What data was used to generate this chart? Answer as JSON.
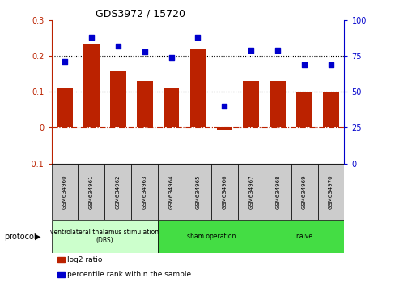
{
  "title": "GDS3972 / 15720",
  "samples": [
    "GSM634960",
    "GSM634961",
    "GSM634962",
    "GSM634963",
    "GSM634964",
    "GSM634965",
    "GSM634966",
    "GSM634967",
    "GSM634968",
    "GSM634969",
    "GSM634970"
  ],
  "log2_ratio": [
    0.11,
    0.235,
    0.16,
    0.13,
    0.11,
    0.22,
    -0.005,
    0.13,
    0.13,
    0.1,
    0.1
  ],
  "percentile_rank": [
    71,
    88,
    82,
    78,
    74,
    88,
    40,
    79,
    79,
    69,
    69
  ],
  "ylim_left": [
    -0.1,
    0.3
  ],
  "ylim_right": [
    0,
    100
  ],
  "yticks_left": [
    -0.1,
    0.0,
    0.1,
    0.2,
    0.3
  ],
  "yticks_right": [
    0,
    25,
    50,
    75,
    100
  ],
  "bar_color": "#bb2200",
  "dot_color": "#0000cc",
  "hline_color": "#bb2200",
  "dotted_lines": [
    0.1,
    0.2
  ],
  "protocol_groups": [
    {
      "label": "ventrolateral thalamus stimulation\n(DBS)",
      "start": 0,
      "end": 3,
      "color": "#ccffcc"
    },
    {
      "label": "sham operation",
      "start": 4,
      "end": 7,
      "color": "#44dd44"
    },
    {
      "label": "naive",
      "start": 8,
      "end": 10,
      "color": "#44dd44"
    }
  ],
  "legend_items": [
    {
      "label": "log2 ratio",
      "color": "#bb2200"
    },
    {
      "label": "percentile rank within the sample",
      "color": "#0000cc"
    }
  ],
  "protocol_label": "protocol",
  "sample_box_color": "#cccccc",
  "bar_width": 0.6,
  "dot_size": 20
}
